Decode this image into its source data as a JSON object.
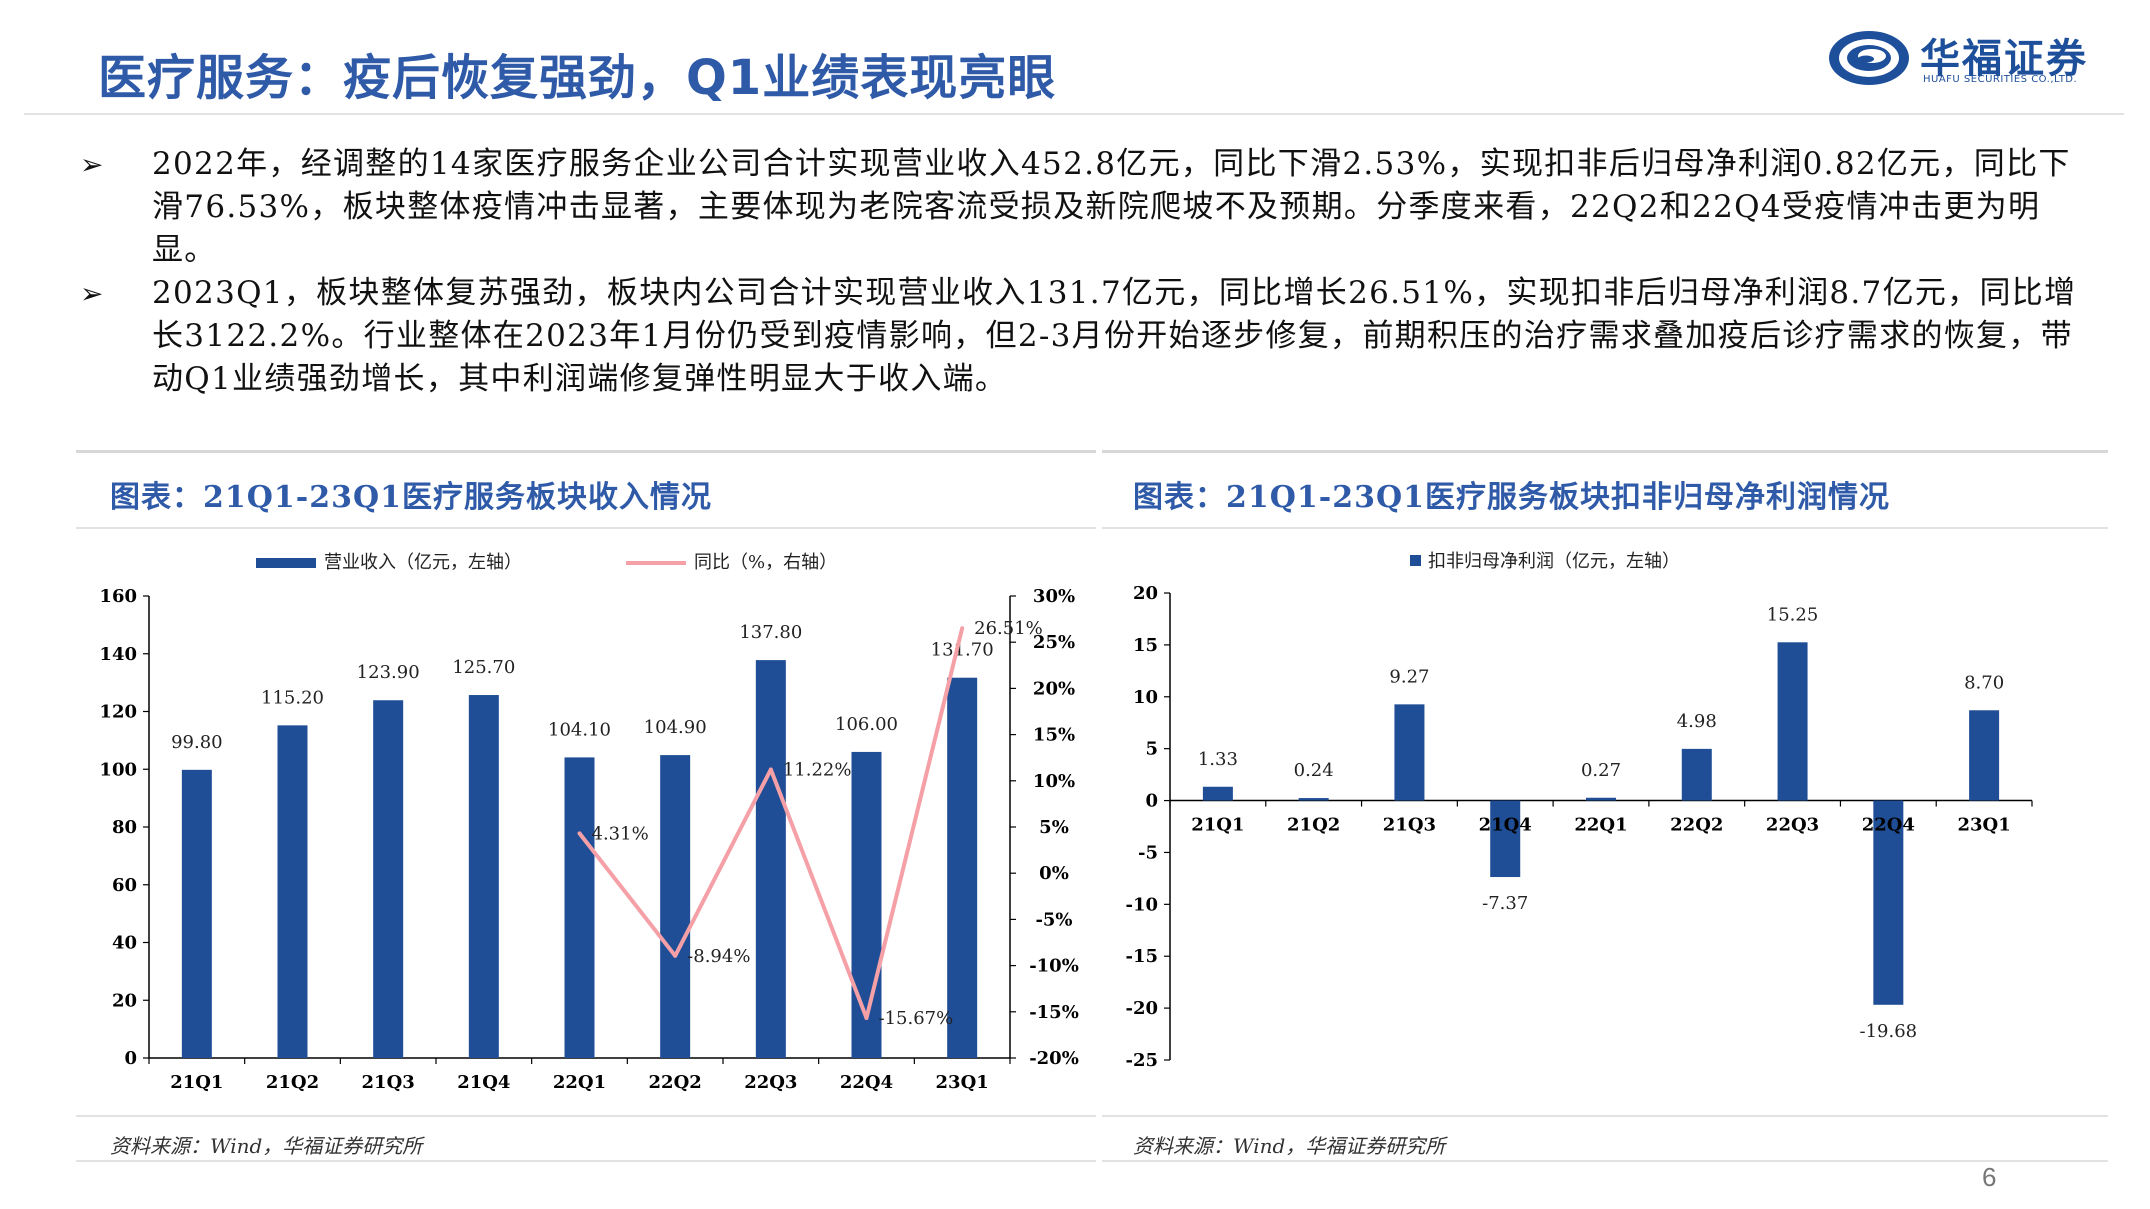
{
  "header": {
    "title": "医疗服务：疫后恢复强劲，Q1业绩表现亮眼",
    "logo_cn": "华福证券",
    "logo_en": "HUAFU SECURITIES CO.,LTD."
  },
  "bullets": [
    "2022年，经调整的14家医疗服务企业公司合计实现营业收入452.8亿元，同比下滑2.53%，实现扣非后归母净利润0.82亿元，同比下滑76.53%，板块整体疫情冲击显著，主要体现为老院客流受损及新院爬坡不及预期。分季度来看，22Q2和22Q4受疫情冲击更为明显。",
    "2023Q1，板块整体复苏强劲，板块内公司合计实现营业收入131.7亿元，同比增长26.51%，实现扣非后归母净利润8.7亿元，同比增长3122.2%。行业整体在2023年1月份仍受到疫情影响，但2-3月份开始逐步修复，前期积压的治疗需求叠加疫后诊疗需求的恢复，带动Q1业绩强劲增长，其中利润端修复弹性明显大于收入端。"
  ],
  "bullet_marker": "➢",
  "chart_data": [
    {
      "type": "bar",
      "title": "图表：21Q1-23Q1医疗服务板块收入情况",
      "categories": [
        "21Q1",
        "21Q2",
        "21Q3",
        "21Q4",
        "22Q1",
        "22Q2",
        "22Q3",
        "22Q4",
        "23Q1"
      ],
      "series": [
        {
          "name": "营业收入（亿元，左轴）",
          "type": "bar",
          "axis": "left",
          "color": "#1f4e96",
          "values": [
            99.8,
            115.2,
            123.9,
            125.7,
            104.1,
            104.9,
            137.8,
            106.0,
            131.7
          ],
          "labels": [
            "99.80",
            "115.20",
            "123.90",
            "125.70",
            "104.10",
            "104.90",
            "137.80",
            "106.00",
            "131.70"
          ]
        },
        {
          "name": "同比（%，右轴）",
          "type": "line",
          "axis": "right",
          "color": "#f4a0a6",
          "values": [
            null,
            null,
            null,
            null,
            4.31,
            -8.94,
            11.22,
            -15.67,
            26.51
          ],
          "labels": [
            "",
            "",
            "",
            "",
            "4.31%",
            "-8.94%",
            "11.22%",
            "-15.67%",
            "26.51%"
          ]
        }
      ],
      "y_left": {
        "min": 0,
        "max": 160,
        "ticks": [
          "0",
          "20",
          "40",
          "60",
          "80",
          "100",
          "120",
          "140",
          "160"
        ]
      },
      "y_right": {
        "min": -20,
        "max": 30,
        "ticks": [
          "-20%",
          "-15%",
          "-10%",
          "-5%",
          "0%",
          "5%",
          "10%",
          "15%",
          "20%",
          "25%",
          "30%"
        ]
      },
      "legend": "top",
      "grid": false,
      "source": "资料来源：Wind，华福证券研究所"
    },
    {
      "type": "bar",
      "title": "图表：21Q1-23Q1医疗服务板块扣非归母净利润情况",
      "categories": [
        "21Q1",
        "21Q2",
        "21Q3",
        "21Q4",
        "22Q1",
        "22Q2",
        "22Q3",
        "22Q4",
        "23Q1"
      ],
      "series": [
        {
          "name": "扣非归母净利润（亿元，左轴）",
          "color": "#1f4e96",
          "values": [
            1.33,
            0.24,
            9.27,
            -7.37,
            0.27,
            4.98,
            15.25,
            -19.68,
            8.7
          ],
          "labels": [
            "1.33",
            "0.24",
            "9.27",
            "-7.37",
            "0.27",
            "4.98",
            "15.25",
            "-19.68",
            "8.70"
          ]
        }
      ],
      "y_left": {
        "min": -25,
        "max": 20,
        "ticks": [
          "-25",
          "-20",
          "-15",
          "-10",
          "-5",
          "0",
          "5",
          "10",
          "15",
          "20"
        ]
      },
      "legend": "top",
      "grid": false,
      "source": "资料来源：Wind，华福证券研究所"
    }
  ],
  "page_number": "6"
}
